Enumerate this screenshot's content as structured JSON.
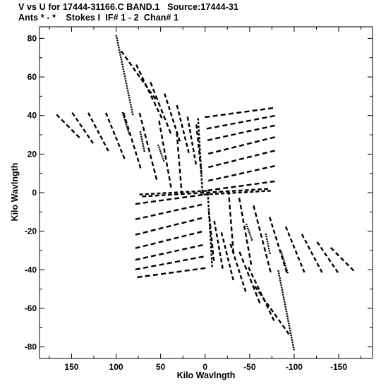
{
  "chart_data": {
    "type": "scatter",
    "title": "V vs U for 17444-31166.C BAND.1   Source:17444-31",
    "subtitle": "Ants * - *    Stokes I  IF# 1 - 2  Chan# 1",
    "xlabel": "Kilo Wavlngth",
    "ylabel": "Kilo Wavlngth",
    "xlim": [
      186,
      -188
    ],
    "ylim": [
      -86,
      86
    ],
    "x_ticks": [
      150,
      100,
      50,
      0,
      -50,
      -100,
      -150
    ],
    "y_ticks": [
      80,
      60,
      40,
      20,
      0,
      -20,
      -40,
      -60,
      -80
    ],
    "x_tick_labels": [
      "150",
      "100",
      "50",
      "0",
      "-50",
      "-100",
      "-150"
    ],
    "y_tick_labels": [
      "80",
      "60",
      "40",
      "20",
      "0",
      "-20",
      "-40",
      "-60",
      "-80"
    ],
    "grid": false,
    "legend": "none",
    "color": "#000000",
    "tracks": [
      {
        "x": [
          100,
          81
        ],
        "y": [
          82,
          40
        ],
        "ticks": 34
      },
      {
        "x": [
          93,
          85
        ],
        "y": [
          42,
          30
        ],
        "ticks": 10
      },
      {
        "x": [
          73,
          68
        ],
        "y": [
          32,
          21
        ],
        "ticks": 9
      },
      {
        "x": [
          53,
          46
        ],
        "y": [
          25,
          16
        ],
        "ticks": 9
      },
      {
        "x": [
          95,
          55
        ],
        "y": [
          74,
          48
        ],
        "ticks": 9
      },
      {
        "x": [
          78,
          48
        ],
        "y": [
          67,
          38
        ],
        "ticks": 9
      },
      {
        "x": [
          62,
          38
        ],
        "y": [
          58,
          30
        ],
        "ticks": 8
      },
      {
        "x": [
          46,
          28
        ],
        "y": [
          52,
          26
        ],
        "ticks": 8
      },
      {
        "x": [
          32,
          18
        ],
        "y": [
          46,
          20
        ],
        "ticks": 8
      },
      {
        "x": [
          20,
          10
        ],
        "y": [
          40,
          14
        ],
        "ticks": 8
      },
      {
        "x": [
          10,
          4
        ],
        "y": [
          36,
          9
        ],
        "ticks": 8
      },
      {
        "x": [
          8,
          3
        ],
        "y": [
          39,
          0
        ],
        "ticks": 20
      },
      {
        "x": [
          168,
          140
        ],
        "y": [
          41,
          28
        ],
        "ticks": 5
      },
      {
        "x": [
          150,
          125
        ],
        "y": [
          42,
          25
        ],
        "ticks": 6
      },
      {
        "x": [
          132,
          108
        ],
        "y": [
          42,
          21
        ],
        "ticks": 7
      },
      {
        "x": [
          112,
          90
        ],
        "y": [
          42,
          17
        ],
        "ticks": 8
      },
      {
        "x": [
          92,
          72
        ],
        "y": [
          42,
          12
        ],
        "ticks": 9
      },
      {
        "x": [
          74,
          54
        ],
        "y": [
          42,
          6
        ],
        "ticks": 10
      },
      {
        "x": [
          52,
          38
        ],
        "y": [
          38,
          2
        ],
        "ticks": 10
      },
      {
        "x": [
          32,
          26
        ],
        "y": [
          32,
          -2
        ],
        "ticks": 9
      },
      {
        "x": [
          2,
          -78
        ],
        "y": [
          39,
          44
        ],
        "ticks": 9
      },
      {
        "x": [
          0,
          -80
        ],
        "y": [
          33,
          40
        ],
        "ticks": 9
      },
      {
        "x": [
          -1,
          -80
        ],
        "y": [
          27,
          35
        ],
        "ticks": 9
      },
      {
        "x": [
          -2,
          -80
        ],
        "y": [
          20,
          29
        ],
        "ticks": 9
      },
      {
        "x": [
          -2,
          -80
        ],
        "y": [
          13,
          22
        ],
        "ticks": 9
      },
      {
        "x": [
          -2,
          -80
        ],
        "y": [
          6,
          14
        ],
        "ticks": 9
      },
      {
        "x": [
          -1,
          -80
        ],
        "y": [
          1,
          6
        ],
        "ticks": 9
      },
      {
        "x": [
          72,
          0
        ],
        "y": [
          -2,
          0
        ],
        "ticks": 10
      },
      {
        "x": [
          3,
          -75
        ],
        "y": [
          -1,
          1
        ],
        "ticks": 12
      },
      {
        "x": [
          -100,
          -82
        ],
        "y": [
          -82,
          -40
        ],
        "ticks": 34
      },
      {
        "x": [
          -93,
          -85
        ],
        "y": [
          -42,
          -30
        ],
        "ticks": 10
      },
      {
        "x": [
          -73,
          -68
        ],
        "y": [
          -32,
          -21
        ],
        "ticks": 9
      },
      {
        "x": [
          -53,
          -46
        ],
        "y": [
          -25,
          -16
        ],
        "ticks": 9
      },
      {
        "x": [
          -95,
          -55
        ],
        "y": [
          -74,
          -48
        ],
        "ticks": 9
      },
      {
        "x": [
          -78,
          -48
        ],
        "y": [
          -67,
          -38
        ],
        "ticks": 9
      },
      {
        "x": [
          -62,
          -38
        ],
        "y": [
          -58,
          -30
        ],
        "ticks": 8
      },
      {
        "x": [
          -46,
          -28
        ],
        "y": [
          -52,
          -26
        ],
        "ticks": 8
      },
      {
        "x": [
          -32,
          -18
        ],
        "y": [
          -46,
          -20
        ],
        "ticks": 8
      },
      {
        "x": [
          -20,
          -10
        ],
        "y": [
          -40,
          -14
        ],
        "ticks": 8
      },
      {
        "x": [
          -10,
          -4
        ],
        "y": [
          -36,
          -9
        ],
        "ticks": 8
      },
      {
        "x": [
          -8,
          -3
        ],
        "y": [
          -39,
          0
        ],
        "ticks": 20
      },
      {
        "x": [
          -168,
          -140
        ],
        "y": [
          -41,
          -28
        ],
        "ticks": 5
      },
      {
        "x": [
          -150,
          -125
        ],
        "y": [
          -42,
          -25
        ],
        "ticks": 6
      },
      {
        "x": [
          -132,
          -108
        ],
        "y": [
          -42,
          -21
        ],
        "ticks": 7
      },
      {
        "x": [
          -112,
          -90
        ],
        "y": [
          -42,
          -17
        ],
        "ticks": 8
      },
      {
        "x": [
          -92,
          -72
        ],
        "y": [
          -42,
          -12
        ],
        "ticks": 9
      },
      {
        "x": [
          -74,
          -54
        ],
        "y": [
          -42,
          -6
        ],
        "ticks": 10
      },
      {
        "x": [
          -52,
          -38
        ],
        "y": [
          -38,
          -2
        ],
        "ticks": 10
      },
      {
        "x": [
          -32,
          -26
        ],
        "y": [
          -32,
          2
        ],
        "ticks": 9
      },
      {
        "x": [
          -2,
          78
        ],
        "y": [
          -39,
          -44
        ],
        "ticks": 9
      },
      {
        "x": [
          0,
          80
        ],
        "y": [
          -33,
          -40
        ],
        "ticks": 9
      },
      {
        "x": [
          1,
          80
        ],
        "y": [
          -27,
          -35
        ],
        "ticks": 9
      },
      {
        "x": [
          2,
          80
        ],
        "y": [
          -20,
          -29
        ],
        "ticks": 9
      },
      {
        "x": [
          2,
          80
        ],
        "y": [
          -13,
          -22
        ],
        "ticks": 9
      },
      {
        "x": [
          2,
          80
        ],
        "y": [
          -6,
          -14
        ],
        "ticks": 9
      },
      {
        "x": [
          1,
          80
        ],
        "y": [
          -1,
          -6
        ],
        "ticks": 9
      },
      {
        "x": [
          -72,
          0
        ],
        "y": [
          2,
          0
        ],
        "ticks": 10
      },
      {
        "x": [
          -3,
          75
        ],
        "y": [
          1,
          -1
        ],
        "ticks": 12
      }
    ]
  }
}
